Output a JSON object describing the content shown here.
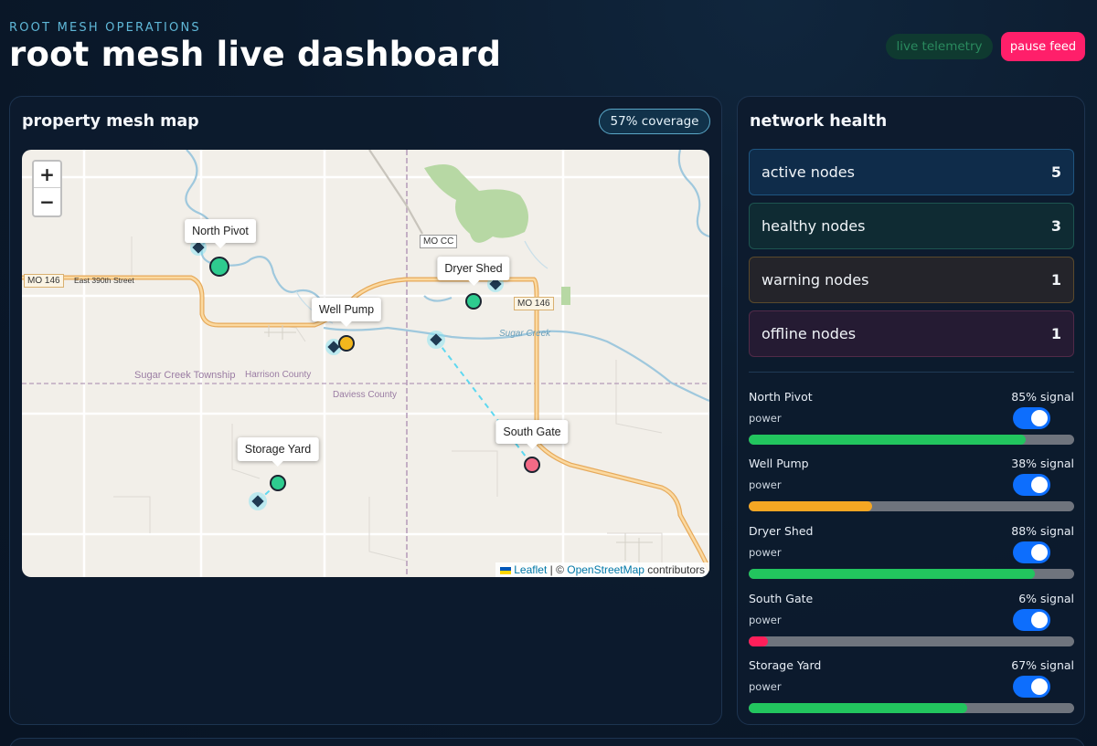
{
  "header": {
    "eyebrow": "ROOT MESH OPERATIONS",
    "title": "root mesh live dashboard",
    "telemetry_label": "live telemetry",
    "pause_label": "pause feed"
  },
  "map_panel": {
    "title": "property mesh map",
    "coverage": "57% coverage",
    "zoom_in": "+",
    "zoom_out": "−",
    "attribution": {
      "leaflet": "Leaflet",
      "separator": " | © ",
      "osm": "OpenStreetMap",
      "suffix": " contributors"
    },
    "labels": {
      "mo146_west": "MO 146",
      "street": "East 390th Street",
      "mocc": "MO CC",
      "mo146_east": "MO 146",
      "creek": "Sugar Creek",
      "township": "Sugar Creek Township",
      "harrison": "Harrison County",
      "daviess": "Daviess County"
    },
    "markers": [
      {
        "name": "North Pivot",
        "status_color": "#2ecc8f"
      },
      {
        "name": "Well Pump",
        "status_color": "#f3b71d"
      },
      {
        "name": "Dryer Shed",
        "status_color": "#2ecc8f"
      },
      {
        "name": "South Gate",
        "status_color": "#f36a86"
      },
      {
        "name": "Storage Yard",
        "status_color": "#2ecc8f"
      }
    ]
  },
  "health_panel": {
    "title": "network health",
    "stats": [
      {
        "label": "active nodes",
        "value": "5"
      },
      {
        "label": "healthy nodes",
        "value": "3"
      },
      {
        "label": "warning nodes",
        "value": "1"
      },
      {
        "label": "offline nodes",
        "value": "1"
      }
    ],
    "nodes": [
      {
        "name": "North Pivot",
        "signal": "85% signal",
        "power_label": "power",
        "signal_pct": 85,
        "bar_color": "#22c55e",
        "power_on": true
      },
      {
        "name": "Well Pump",
        "signal": "38% signal",
        "power_label": "power",
        "signal_pct": 38,
        "bar_color": "#f5a623",
        "power_on": true
      },
      {
        "name": "Dryer Shed",
        "signal": "88% signal",
        "power_label": "power",
        "signal_pct": 88,
        "bar_color": "#22c55e",
        "power_on": true
      },
      {
        "name": "South Gate",
        "signal": "6% signal",
        "power_label": "power",
        "signal_pct": 6,
        "bar_color": "#ff1f5a",
        "power_on": true
      },
      {
        "name": "Storage Yard",
        "signal": "67% signal",
        "power_label": "power",
        "signal_pct": 67,
        "bar_color": "#22c55e",
        "power_on": true
      }
    ]
  }
}
